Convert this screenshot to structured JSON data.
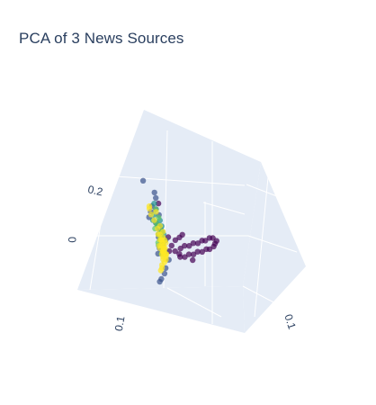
{
  "chart_data": {
    "type": "scatter",
    "projection": "3d",
    "title": "PCA of 3 News Sources",
    "axes": {
      "x": {
        "ticks": [
          "0.1"
        ]
      },
      "y": {
        "ticks": [
          "0.1"
        ]
      },
      "z": {
        "ticks": [
          "0.2",
          "0"
        ]
      }
    },
    "legend": "none",
    "colorscale": [
      "#440154",
      "#3b528b",
      "#21918c",
      "#5ec962",
      "#fde725"
    ],
    "series": [
      {
        "color": "#440154",
        "points": [
          [
            -0.09,
            0.02,
            0.01
          ],
          [
            -0.08,
            0.06,
            0.01
          ],
          [
            -0.07,
            0.1,
            0.02
          ],
          [
            -0.06,
            0.13,
            0.03
          ],
          [
            -0.05,
            0.16,
            0.03
          ],
          [
            -0.04,
            0.19,
            0.04
          ],
          [
            -0.03,
            0.22,
            0.04
          ],
          [
            -0.02,
            0.25,
            0.05
          ],
          [
            -0.01,
            0.27,
            0.05
          ],
          [
            0.0,
            0.3,
            0.06
          ],
          [
            0.01,
            0.32,
            0.06
          ],
          [
            -0.06,
            0.08,
            -0.01
          ],
          [
            -0.05,
            0.11,
            -0.01
          ],
          [
            -0.04,
            0.14,
            0.0
          ],
          [
            -0.03,
            0.17,
            0.0
          ],
          [
            -0.02,
            0.2,
            0.01
          ],
          [
            -0.01,
            0.23,
            0.01
          ],
          [
            0.0,
            0.26,
            0.02
          ],
          [
            0.01,
            0.28,
            0.02
          ],
          [
            0.02,
            0.31,
            0.03
          ],
          [
            -0.08,
            0.04,
            0.03
          ],
          [
            -0.07,
            0.07,
            0.05
          ],
          [
            -0.06,
            0.1,
            0.06
          ],
          [
            -0.05,
            0.12,
            0.07
          ],
          [
            0.01,
            0.33,
            0.04
          ],
          [
            0.02,
            0.34,
            0.05
          ],
          [
            -0.11,
            0.01,
            0.18
          ],
          [
            -0.09,
            0.03,
            0.06
          ],
          [
            -0.08,
            0.09,
            0.0
          ],
          [
            -0.02,
            0.15,
            -0.02
          ]
        ]
      },
      {
        "color": "#3b528b",
        "points": [
          [
            -0.09,
            -0.02,
            0.22
          ],
          [
            -0.1,
            -0.01,
            0.2
          ],
          [
            -0.12,
            -0.04,
            0.17
          ],
          [
            -0.13,
            -0.05,
            0.15
          ],
          [
            -0.13,
            -0.07,
            0.13
          ],
          [
            -0.1,
            -0.02,
            0.1
          ],
          [
            -0.09,
            -0.01,
            0.08
          ],
          [
            -0.08,
            0.0,
            0.05
          ],
          [
            -0.07,
            -0.04,
            0.03
          ],
          [
            -0.06,
            -0.03,
            0.01
          ],
          [
            -0.05,
            -0.02,
            -0.02
          ],
          [
            -0.06,
            -0.05,
            -0.05
          ],
          [
            -0.07,
            -0.06,
            -0.07
          ],
          [
            -0.09,
            -0.08,
            -0.09
          ],
          [
            -0.1,
            -0.09,
            -0.1
          ],
          [
            -0.08,
            -0.06,
            0.02
          ],
          [
            -0.09,
            -0.03,
            0.04
          ],
          [
            -0.1,
            -0.04,
            0.06
          ],
          [
            -0.11,
            -0.02,
            0.09
          ],
          [
            -0.12,
            -0.03,
            0.11
          ],
          [
            -0.16,
            -0.05,
            0.26
          ],
          [
            -0.11,
            -0.06,
            0.0
          ],
          [
            -0.08,
            -0.02,
            0.14
          ],
          [
            -0.09,
            -0.03,
            0.16
          ]
        ]
      },
      {
        "color": "#21918c",
        "points": [
          [
            -0.1,
            -0.03,
            0.18
          ],
          [
            -0.11,
            -0.04,
            0.14
          ],
          [
            -0.12,
            -0.05,
            0.12
          ],
          [
            -0.09,
            -0.02,
            0.09
          ],
          [
            -0.08,
            -0.01,
            0.07
          ],
          [
            -0.09,
            -0.04,
            0.05
          ],
          [
            -0.1,
            -0.05,
            0.03
          ],
          [
            -0.08,
            -0.03,
            0.06
          ],
          [
            -0.07,
            -0.02,
            0.1
          ],
          [
            -0.08,
            -0.02,
            0.12
          ],
          [
            -0.09,
            -0.03,
            0.02
          ],
          [
            -0.1,
            -0.04,
            0.0
          ],
          [
            -0.08,
            -0.04,
            0.01
          ],
          [
            -0.07,
            -0.03,
            0.04
          ],
          [
            -0.11,
            -0.03,
            0.07
          ],
          [
            -0.12,
            -0.02,
            0.1
          ]
        ]
      },
      {
        "color": "#5ec962",
        "points": [
          [
            -0.09,
            -0.03,
            0.16
          ],
          [
            -0.1,
            -0.04,
            0.11
          ],
          [
            -0.08,
            -0.02,
            0.08
          ],
          [
            -0.09,
            -0.03,
            0.06
          ],
          [
            -0.1,
            -0.05,
            0.04
          ],
          [
            -0.08,
            -0.04,
            0.03
          ],
          [
            -0.07,
            -0.03,
            0.05
          ],
          [
            -0.11,
            -0.05,
            0.09
          ],
          [
            -0.09,
            -0.02,
            0.13
          ],
          [
            -0.08,
            -0.03,
            0.0
          ]
        ]
      },
      {
        "color": "#fde725",
        "points": [
          [
            -0.08,
            -0.03,
            0.02
          ],
          [
            -0.08,
            -0.04,
            0.01
          ],
          [
            -0.09,
            -0.03,
            0.0
          ],
          [
            -0.08,
            -0.02,
            -0.01
          ],
          [
            -0.07,
            -0.03,
            -0.02
          ],
          [
            -0.08,
            -0.04,
            -0.03
          ],
          [
            -0.09,
            -0.04,
            -0.02
          ],
          [
            -0.07,
            -0.02,
            0.0
          ],
          [
            -0.07,
            -0.04,
            0.01
          ],
          [
            -0.09,
            -0.02,
            0.01
          ],
          [
            -0.08,
            -0.03,
            0.04
          ],
          [
            -0.09,
            -0.04,
            0.05
          ],
          [
            -0.07,
            -0.03,
            0.03
          ],
          [
            -0.08,
            -0.02,
            0.06
          ],
          [
            -0.1,
            -0.03,
            0.03
          ],
          [
            -0.08,
            -0.05,
            0.0
          ],
          [
            -0.07,
            -0.05,
            -0.01
          ],
          [
            -0.06,
            -0.03,
            0.0
          ],
          [
            -0.06,
            -0.04,
            0.02
          ],
          [
            -0.09,
            -0.05,
            0.02
          ],
          [
            -0.1,
            -0.04,
            0.07
          ],
          [
            -0.11,
            -0.03,
            0.09
          ],
          [
            -0.12,
            -0.04,
            0.12
          ],
          [
            -0.13,
            -0.05,
            0.14
          ],
          [
            -0.12,
            -0.06,
            0.17
          ],
          [
            -0.11,
            -0.02,
            0.15
          ],
          [
            -0.14,
            -0.05,
            0.16
          ],
          [
            -0.1,
            -0.05,
            -0.04
          ],
          [
            -0.11,
            -0.06,
            -0.06
          ],
          [
            -0.09,
            -0.06,
            -0.05
          ],
          [
            -0.07,
            -0.01,
            0.04
          ],
          [
            -0.06,
            -0.02,
            0.05
          ],
          [
            -0.08,
            -0.01,
            0.08
          ],
          [
            -0.09,
            -0.02,
            0.1
          ],
          [
            -0.08,
            -0.04,
            0.07
          ],
          [
            -0.07,
            -0.04,
            0.05
          ],
          [
            -0.1,
            -0.02,
            0.05
          ],
          [
            -0.06,
            -0.05,
            0.01
          ],
          [
            -0.08,
            -0.06,
            0.03
          ],
          [
            -0.09,
            -0.01,
            0.02
          ]
        ]
      }
    ]
  }
}
